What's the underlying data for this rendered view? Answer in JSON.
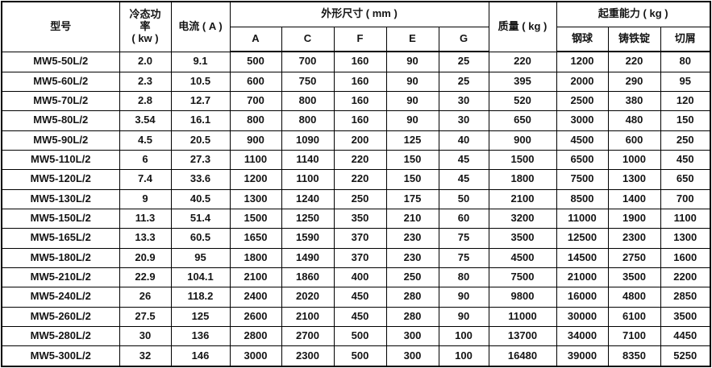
{
  "table": {
    "header": {
      "model": "型号",
      "power_lines": [
        "冷态功",
        "率",
        "( kw )"
      ],
      "current": "电流 ( A )",
      "dimensions": "外形尺寸 ( mm )",
      "dim_cols": [
        "A",
        "C",
        "F",
        "E",
        "G"
      ],
      "mass": "质量 ( kg )",
      "capacity": "起重能力 ( kg )",
      "capacity_cols": [
        "钢球",
        "铸铁锭",
        "切屑"
      ]
    },
    "rows": [
      [
        "MW5-50L/2",
        "2.0",
        "9.1",
        "500",
        "700",
        "160",
        "90",
        "25",
        "220",
        "1200",
        "220",
        "80"
      ],
      [
        "MW5-60L/2",
        "2.3",
        "10.5",
        "600",
        "750",
        "160",
        "90",
        "25",
        "395",
        "2000",
        "290",
        "95"
      ],
      [
        "MW5-70L/2",
        "2.8",
        "12.7",
        "700",
        "800",
        "160",
        "90",
        "30",
        "520",
        "2500",
        "380",
        "120"
      ],
      [
        "MW5-80L/2",
        "3.54",
        "16.1",
        "800",
        "800",
        "160",
        "90",
        "30",
        "650",
        "3000",
        "480",
        "150"
      ],
      [
        "MW5-90L/2",
        "4.5",
        "20.5",
        "900",
        "1090",
        "200",
        "125",
        "40",
        "900",
        "4500",
        "600",
        "250"
      ],
      [
        "MW5-110L/2",
        "6",
        "27.3",
        "1100",
        "1140",
        "220",
        "150",
        "45",
        "1500",
        "6500",
        "1000",
        "450"
      ],
      [
        "MW5-120L/2",
        "7.4",
        "33.6",
        "1200",
        "1100",
        "220",
        "150",
        "45",
        "1800",
        "7500",
        "1300",
        "650"
      ],
      [
        "MW5-130L/2",
        "9",
        "40.5",
        "1300",
        "1240",
        "250",
        "175",
        "50",
        "2100",
        "8500",
        "1400",
        "700"
      ],
      [
        "MW5-150L/2",
        "11.3",
        "51.4",
        "1500",
        "1250",
        "350",
        "210",
        "60",
        "3200",
        "11000",
        "1900",
        "1100"
      ],
      [
        "MW5-165L/2",
        "13.3",
        "60.5",
        "1650",
        "1590",
        "370",
        "230",
        "75",
        "3500",
        "12500",
        "2300",
        "1300"
      ],
      [
        "MW5-180L/2",
        "20.9",
        "95",
        "1800",
        "1490",
        "370",
        "230",
        "75",
        "4500",
        "14500",
        "2750",
        "1600"
      ],
      [
        "MW5-210L/2",
        "22.9",
        "104.1",
        "2100",
        "1860",
        "400",
        "250",
        "80",
        "7500",
        "21000",
        "3500",
        "2200"
      ],
      [
        "MW5-240L/2",
        "26",
        "118.2",
        "2400",
        "2020",
        "450",
        "280",
        "90",
        "9800",
        "16000",
        "4800",
        "2850"
      ],
      [
        "MW5-260L/2",
        "27.5",
        "125",
        "2600",
        "2100",
        "450",
        "280",
        "90",
        "11000",
        "30000",
        "6100",
        "3500"
      ],
      [
        "MW5-280L/2",
        "30",
        "136",
        "2800",
        "2700",
        "500",
        "300",
        "100",
        "13700",
        "34000",
        "7100",
        "4450"
      ],
      [
        "MW5-300L/2",
        "32",
        "146",
        "3000",
        "2300",
        "500",
        "300",
        "100",
        "16480",
        "39000",
        "8350",
        "5250"
      ]
    ]
  }
}
